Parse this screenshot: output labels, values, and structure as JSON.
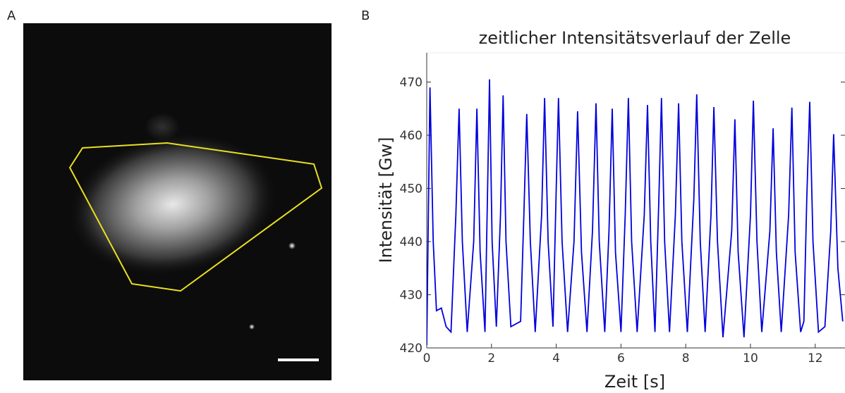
{
  "panel_labels": [
    "A",
    "B"
  ],
  "chart_data": {
    "type": "line",
    "title": "zeitlicher Intensitätsverlauf der Zelle",
    "x_label": "Zeit [s]",
    "y_label": "Intensität [Gw]",
    "x": [
      0,
      0.05,
      0.1,
      0.2,
      0.3,
      0.45,
      0.6,
      0.75,
      0.9,
      1.0,
      1.1,
      1.25,
      1.45,
      1.55,
      1.65,
      1.8,
      1.88,
      1.94,
      2.02,
      2.15,
      2.28,
      2.36,
      2.45,
      2.6,
      2.9,
      3.0,
      3.09,
      3.2,
      3.35,
      3.55,
      3.64,
      3.75,
      3.9,
      4.0,
      4.07,
      4.18,
      4.35,
      4.55,
      4.66,
      4.78,
      4.95,
      5.12,
      5.23,
      5.33,
      5.5,
      5.63,
      5.73,
      5.83,
      6.0,
      6.13,
      6.23,
      6.33,
      6.5,
      6.72,
      6.82,
      6.92,
      7.05,
      7.17,
      7.25,
      7.35,
      7.5,
      7.68,
      7.78,
      7.88,
      8.05,
      8.25,
      8.34,
      8.45,
      8.6,
      8.78,
      8.87,
      8.98,
      9.15,
      9.42,
      9.52,
      9.62,
      9.8,
      10.0,
      10.09,
      10.2,
      10.35,
      10.6,
      10.7,
      10.8,
      10.95,
      11.18,
      11.28,
      11.38,
      11.55,
      11.65,
      11.74,
      11.83,
      11.93,
      12.1,
      12.3,
      12.48,
      12.57,
      12.7,
      12.85
    ],
    "series": [
      {
        "color": "#0000dd",
        "values": [
          420.5,
          445,
          469,
          440,
          427,
          427.5,
          424,
          423,
          445,
          465,
          440,
          423,
          440,
          465,
          438,
          423,
          450,
          470.5,
          440,
          424,
          445,
          467.5,
          440,
          424,
          425,
          445,
          464,
          440,
          423,
          445,
          467,
          440,
          424,
          450,
          467,
          440,
          423,
          440,
          464.5,
          438,
          423,
          442,
          466,
          440,
          423,
          442,
          465,
          438,
          423,
          445,
          467,
          440,
          423,
          445,
          465.7,
          440,
          423,
          448,
          467,
          440,
          423,
          445,
          466,
          440,
          423,
          448,
          467.7,
          440,
          423,
          445,
          465.3,
          440,
          422,
          442,
          463,
          438,
          422,
          445,
          466.5,
          440,
          423,
          442,
          461.3,
          438,
          423,
          445,
          465.2,
          438,
          423,
          425,
          448,
          466.3,
          440,
          423,
          424,
          442,
          460.2,
          435,
          425
        ]
      }
    ],
    "xlim": [
      0,
      12.92
    ],
    "ylim": [
      420,
      475.5
    ],
    "xticks": [
      0,
      2,
      4,
      6,
      8,
      10,
      12
    ],
    "yticks": [
      420,
      430,
      440,
      450,
      460,
      470
    ]
  }
}
